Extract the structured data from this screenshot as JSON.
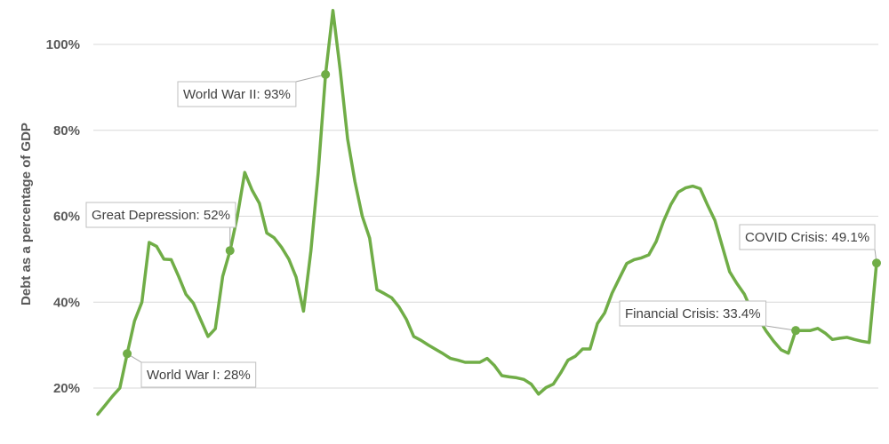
{
  "chart_data": {
    "type": "line",
    "title": "",
    "xlabel": "",
    "ylabel": "Debt as a percentage of GDP",
    "ylim": [
      14,
      108
    ],
    "y_ticks": [
      "20%",
      "40%",
      "60%",
      "80%",
      "100%"
    ],
    "grid": true,
    "line_color": "#70ad47",
    "series": [
      {
        "name": "",
        "values": [
          13.9,
          16.0,
          18.1,
          20.0,
          28.0,
          35.6,
          40.0,
          53.9,
          53.0,
          50.0,
          49.9,
          46.0,
          41.8,
          39.8,
          35.9,
          32.0,
          33.8,
          46.0,
          52.0,
          60.0,
          70.2,
          66.1,
          63.0,
          56.1,
          55.0,
          52.8,
          50.0,
          45.8,
          37.9,
          51.9,
          70.0,
          93.0,
          107.9,
          94.0,
          78.0,
          68.1,
          60.0,
          54.9,
          42.9,
          42.0,
          41.0,
          38.9,
          36.0,
          32.0,
          31.1,
          30.0,
          29.0,
          28.0,
          26.9,
          26.5,
          26.0,
          26.0,
          26.0,
          26.9,
          25.2,
          22.9,
          22.6,
          22.4,
          22.0,
          20.9,
          18.6,
          20.1,
          20.9,
          23.5,
          26.5,
          27.4,
          29.1,
          29.1,
          35.0,
          37.5,
          42.1,
          45.6,
          49.0,
          49.9,
          50.3,
          51.0,
          54.1,
          58.8,
          62.7,
          65.6,
          66.6,
          67.0,
          66.4,
          62.6,
          59.0,
          53.0,
          47.1,
          44.3,
          41.9,
          38.0,
          36.0,
          33.2,
          30.9,
          28.9,
          28.1,
          33.4,
          33.4,
          33.4,
          33.9,
          32.8,
          31.3,
          31.6,
          31.8,
          31.3,
          30.9,
          30.6,
          49.1
        ]
      }
    ],
    "annotations": [
      {
        "text": "World War I: 28%",
        "index": 4,
        "value": 28
      },
      {
        "text": "Great Depression: 52%",
        "index": 18,
        "value": 52
      },
      {
        "text": "World War II: 93%",
        "index": 31,
        "value": 93
      },
      {
        "text": "Financial Crisis: 33.4%",
        "index": 95,
        "value": 33.4
      },
      {
        "text": "COVID Crisis: 49.1%",
        "index": 106,
        "value": 49.1
      }
    ]
  }
}
